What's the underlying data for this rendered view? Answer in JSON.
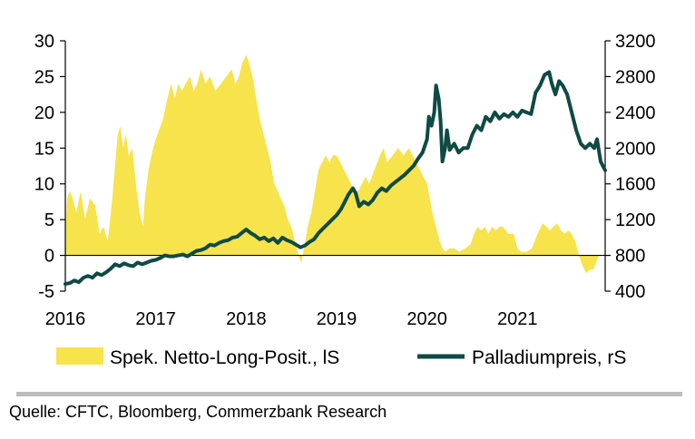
{
  "chart_data": {
    "type": "area+line",
    "title": "",
    "x_ticks": [
      "2016",
      "2017",
      "2018",
      "2019",
      "2020",
      "2021"
    ],
    "x_range": [
      2016.0,
      2021.97
    ],
    "y_left": {
      "range": [
        -5,
        30
      ],
      "ticks": [
        "30",
        "25",
        "20",
        "15",
        "10",
        "5",
        "0",
        "-5"
      ]
    },
    "y_right": {
      "range": [
        400,
        3200
      ],
      "ticks": [
        "3200",
        "2800",
        "2400",
        "2000",
        "1600",
        "1200",
        "800",
        "400"
      ]
    },
    "series": [
      {
        "name": "Spek. Netto-Long-Posit., lS",
        "type": "area",
        "axis": "left",
        "color": "#f7e34b",
        "points": [
          [
            2016.0,
            3
          ],
          [
            2016.02,
            8
          ],
          [
            2016.05,
            9
          ],
          [
            2016.08,
            8
          ],
          [
            2016.12,
            6
          ],
          [
            2016.17,
            9
          ],
          [
            2016.22,
            5
          ],
          [
            2016.27,
            8
          ],
          [
            2016.33,
            7
          ],
          [
            2016.38,
            3
          ],
          [
            2016.42,
            4
          ],
          [
            2016.47,
            2
          ],
          [
            2016.52,
            8
          ],
          [
            2016.56,
            14
          ],
          [
            2016.58,
            17
          ],
          [
            2016.61,
            18
          ],
          [
            2016.64,
            15
          ],
          [
            2016.67,
            17
          ],
          [
            2016.7,
            14
          ],
          [
            2016.74,
            15
          ],
          [
            2016.78,
            10
          ],
          [
            2016.82,
            6
          ],
          [
            2016.86,
            4
          ],
          [
            2016.88,
            8
          ],
          [
            2016.92,
            12
          ],
          [
            2016.97,
            15
          ],
          [
            2017.02,
            17
          ],
          [
            2017.08,
            19
          ],
          [
            2017.13,
            22
          ],
          [
            2017.17,
            24
          ],
          [
            2017.21,
            22
          ],
          [
            2017.25,
            24
          ],
          [
            2017.29,
            23
          ],
          [
            2017.33,
            24
          ],
          [
            2017.38,
            25
          ],
          [
            2017.42,
            23
          ],
          [
            2017.46,
            24
          ],
          [
            2017.5,
            26
          ],
          [
            2017.55,
            24
          ],
          [
            2017.6,
            25
          ],
          [
            2017.66,
            23
          ],
          [
            2017.72,
            24
          ],
          [
            2017.78,
            25
          ],
          [
            2017.84,
            26
          ],
          [
            2017.88,
            24
          ],
          [
            2017.92,
            25
          ],
          [
            2017.96,
            27
          ],
          [
            2018.0,
            28
          ],
          [
            2018.03,
            27
          ],
          [
            2018.07,
            25
          ],
          [
            2018.11,
            22
          ],
          [
            2018.15,
            19
          ],
          [
            2018.19,
            17
          ],
          [
            2018.23,
            15
          ],
          [
            2018.27,
            13
          ],
          [
            2018.31,
            10
          ],
          [
            2018.35,
            9
          ],
          [
            2018.38,
            8
          ],
          [
            2018.42,
            7
          ],
          [
            2018.46,
            5
          ],
          [
            2018.5,
            4
          ],
          [
            2018.54,
            2
          ],
          [
            2018.58,
            0
          ],
          [
            2018.61,
            -1
          ],
          [
            2018.64,
            1
          ],
          [
            2018.68,
            4
          ],
          [
            2018.72,
            6
          ],
          [
            2018.76,
            9
          ],
          [
            2018.8,
            12
          ],
          [
            2018.84,
            13
          ],
          [
            2018.88,
            14
          ],
          [
            2018.92,
            13
          ],
          [
            2018.96,
            14
          ],
          [
            2019.0,
            14
          ],
          [
            2019.04,
            13
          ],
          [
            2019.08,
            12
          ],
          [
            2019.12,
            11
          ],
          [
            2019.16,
            10
          ],
          [
            2019.2,
            9
          ],
          [
            2019.24,
            9
          ],
          [
            2019.28,
            10
          ],
          [
            2019.32,
            11
          ],
          [
            2019.36,
            10
          ],
          [
            2019.42,
            12
          ],
          [
            2019.48,
            14
          ],
          [
            2019.52,
            15
          ],
          [
            2019.56,
            13
          ],
          [
            2019.62,
            14
          ],
          [
            2019.68,
            15
          ],
          [
            2019.74,
            14
          ],
          [
            2019.8,
            15
          ],
          [
            2019.84,
            14
          ],
          [
            2019.88,
            13
          ],
          [
            2019.92,
            12
          ],
          [
            2019.96,
            11
          ],
          [
            2020.0,
            10
          ],
          [
            2020.03,
            8
          ],
          [
            2020.06,
            6
          ],
          [
            2020.1,
            4
          ],
          [
            2020.14,
            2
          ],
          [
            2020.17,
            1
          ],
          [
            2020.2,
            0.5
          ],
          [
            2020.25,
            1
          ],
          [
            2020.3,
            1
          ],
          [
            2020.36,
            0.5
          ],
          [
            2020.42,
            1
          ],
          [
            2020.48,
            1.5
          ],
          [
            2020.52,
            3
          ],
          [
            2020.56,
            4
          ],
          [
            2020.6,
            3.5
          ],
          [
            2020.64,
            4
          ],
          [
            2020.68,
            3
          ],
          [
            2020.72,
            4
          ],
          [
            2020.76,
            3.5
          ],
          [
            2020.8,
            4
          ],
          [
            2020.84,
            4
          ],
          [
            2020.9,
            3
          ],
          [
            2020.96,
            3
          ],
          [
            2021.0,
            1
          ],
          [
            2021.04,
            0.5
          ],
          [
            2021.1,
            0.5
          ],
          [
            2021.16,
            1
          ],
          [
            2021.22,
            3
          ],
          [
            2021.28,
            4.5
          ],
          [
            2021.32,
            4
          ],
          [
            2021.36,
            3.5
          ],
          [
            2021.4,
            4
          ],
          [
            2021.44,
            4.5
          ],
          [
            2021.48,
            3.5
          ],
          [
            2021.52,
            3
          ],
          [
            2021.56,
            3.5
          ],
          [
            2021.6,
            3
          ],
          [
            2021.64,
            2
          ],
          [
            2021.68,
            0
          ],
          [
            2021.72,
            -1.5
          ],
          [
            2021.76,
            -2.5
          ],
          [
            2021.8,
            -2
          ],
          [
            2021.84,
            -2
          ],
          [
            2021.87,
            -1
          ],
          [
            2021.9,
            0
          ]
        ]
      },
      {
        "name": "Palladiumpreis, rS",
        "type": "line",
        "axis": "right",
        "color": "#0f4a45",
        "points": [
          [
            2016.0,
            480
          ],
          [
            2016.05,
            490
          ],
          [
            2016.1,
            520
          ],
          [
            2016.15,
            500
          ],
          [
            2016.2,
            550
          ],
          [
            2016.25,
            570
          ],
          [
            2016.3,
            550
          ],
          [
            2016.35,
            600
          ],
          [
            2016.4,
            580
          ],
          [
            2016.45,
            610
          ],
          [
            2016.5,
            650
          ],
          [
            2016.55,
            700
          ],
          [
            2016.6,
            680
          ],
          [
            2016.65,
            710
          ],
          [
            2016.7,
            690
          ],
          [
            2016.75,
            680
          ],
          [
            2016.8,
            720
          ],
          [
            2016.85,
            700
          ],
          [
            2016.9,
            720
          ],
          [
            2016.95,
            740
          ],
          [
            2017.0,
            750
          ],
          [
            2017.05,
            770
          ],
          [
            2017.1,
            800
          ],
          [
            2017.15,
            790
          ],
          [
            2017.2,
            790
          ],
          [
            2017.25,
            800
          ],
          [
            2017.3,
            810
          ],
          [
            2017.35,
            790
          ],
          [
            2017.4,
            820
          ],
          [
            2017.45,
            850
          ],
          [
            2017.5,
            860
          ],
          [
            2017.55,
            880
          ],
          [
            2017.6,
            920
          ],
          [
            2017.65,
            910
          ],
          [
            2017.7,
            940
          ],
          [
            2017.75,
            960
          ],
          [
            2017.8,
            970
          ],
          [
            2017.85,
            1000
          ],
          [
            2017.9,
            1010
          ],
          [
            2017.95,
            1050
          ],
          [
            2018.0,
            1090
          ],
          [
            2018.05,
            1050
          ],
          [
            2018.1,
            1020
          ],
          [
            2018.15,
            980
          ],
          [
            2018.2,
            1000
          ],
          [
            2018.25,
            960
          ],
          [
            2018.3,
            990
          ],
          [
            2018.35,
            940
          ],
          [
            2018.4,
            1000
          ],
          [
            2018.45,
            970
          ],
          [
            2018.5,
            950
          ],
          [
            2018.55,
            920
          ],
          [
            2018.6,
            890
          ],
          [
            2018.65,
            910
          ],
          [
            2018.7,
            950
          ],
          [
            2018.75,
            980
          ],
          [
            2018.8,
            1050
          ],
          [
            2018.85,
            1100
          ],
          [
            2018.9,
            1150
          ],
          [
            2018.95,
            1200
          ],
          [
            2019.0,
            1250
          ],
          [
            2019.05,
            1320
          ],
          [
            2019.1,
            1420
          ],
          [
            2019.13,
            1480
          ],
          [
            2019.18,
            1550
          ],
          [
            2019.21,
            1500
          ],
          [
            2019.25,
            1350
          ],
          [
            2019.3,
            1400
          ],
          [
            2019.35,
            1370
          ],
          [
            2019.4,
            1420
          ],
          [
            2019.45,
            1500
          ],
          [
            2019.5,
            1550
          ],
          [
            2019.55,
            1520
          ],
          [
            2019.6,
            1580
          ],
          [
            2019.65,
            1620
          ],
          [
            2019.7,
            1660
          ],
          [
            2019.75,
            1700
          ],
          [
            2019.8,
            1750
          ],
          [
            2019.85,
            1800
          ],
          [
            2019.9,
            1880
          ],
          [
            2019.95,
            1950
          ],
          [
            2020.0,
            2100
          ],
          [
            2020.02,
            2350
          ],
          [
            2020.05,
            2250
          ],
          [
            2020.08,
            2400
          ],
          [
            2020.1,
            2700
          ],
          [
            2020.13,
            2550
          ],
          [
            2020.15,
            2300
          ],
          [
            2020.17,
            1850
          ],
          [
            2020.2,
            2000
          ],
          [
            2020.22,
            2200
          ],
          [
            2020.25,
            1980
          ],
          [
            2020.3,
            2050
          ],
          [
            2020.35,
            1950
          ],
          [
            2020.4,
            2000
          ],
          [
            2020.45,
            2000
          ],
          [
            2020.5,
            2150
          ],
          [
            2020.55,
            2250
          ],
          [
            2020.6,
            2200
          ],
          [
            2020.65,
            2350
          ],
          [
            2020.7,
            2300
          ],
          [
            2020.75,
            2400
          ],
          [
            2020.8,
            2330
          ],
          [
            2020.85,
            2380
          ],
          [
            2020.9,
            2350
          ],
          [
            2020.95,
            2400
          ],
          [
            2021.0,
            2350
          ],
          [
            2021.05,
            2420
          ],
          [
            2021.1,
            2400
          ],
          [
            2021.15,
            2380
          ],
          [
            2021.2,
            2620
          ],
          [
            2021.25,
            2700
          ],
          [
            2021.3,
            2820
          ],
          [
            2021.35,
            2850
          ],
          [
            2021.38,
            2720
          ],
          [
            2021.42,
            2600
          ],
          [
            2021.46,
            2750
          ],
          [
            2021.5,
            2700
          ],
          [
            2021.55,
            2600
          ],
          [
            2021.6,
            2400
          ],
          [
            2021.65,
            2200
          ],
          [
            2021.7,
            2050
          ],
          [
            2021.75,
            2000
          ],
          [
            2021.8,
            2050
          ],
          [
            2021.85,
            2000
          ],
          [
            2021.88,
            2100
          ],
          [
            2021.92,
            1850
          ],
          [
            2021.97,
            1750
          ]
        ]
      }
    ],
    "legend": "bottom",
    "source": "Quelle: CFTC, Bloomberg, Commerzbank Research"
  }
}
